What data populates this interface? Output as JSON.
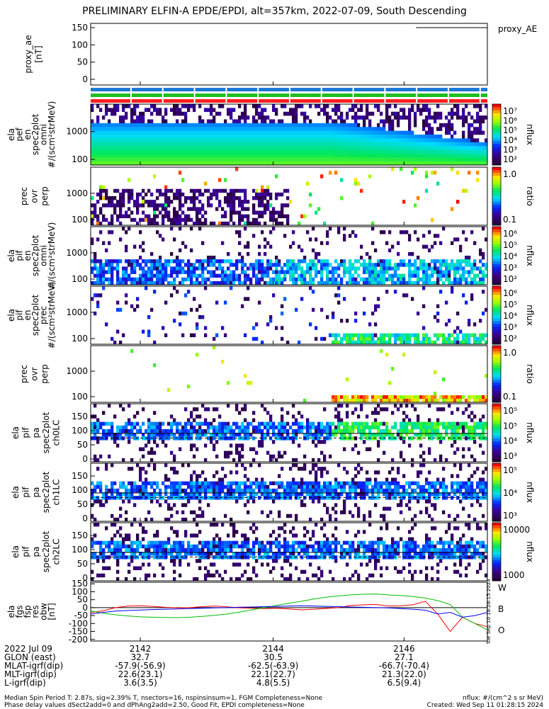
{
  "chart_data": {
    "type": "multi-panel-spectrogram",
    "title": "PRELIMINARY ELFIN-A EPDE/EPDI, alt=357km, 2022-07-09, South Descending",
    "panels": [
      {
        "id": "proxy_ae",
        "ylabel": [
          "proxy_ae",
          "[nT]"
        ],
        "yticks": [
          "150",
          "100",
          "50",
          "0"
        ],
        "ylim": [
          0,
          160
        ],
        "legend": "proxy_AE",
        "series": [
          {
            "x": [
              0.82,
              1.0
            ],
            "values": [
              150,
              150
            ]
          }
        ]
      },
      {
        "id": "flags",
        "ylabel": [],
        "bars": [
          "#1e78d6",
          "#1fbe1f",
          "#ff2020"
        ]
      },
      {
        "id": "ela_pef_omni",
        "ylabel": [
          "ela",
          "pef",
          "en",
          "spec2plot",
          "omni",
          "#/(scm²strMeV)"
        ],
        "yticks": [
          "1000",
          "100"
        ],
        "cbar_label": "nflux",
        "cbar_ticks": [
          "10⁷",
          "10⁶",
          "10⁵",
          "10⁴",
          "10³",
          "10²"
        ]
      },
      {
        "id": "prec_ovr_perp_e",
        "ylabel": [
          "prec",
          "ovr",
          "perp"
        ],
        "yticks": [
          "1000",
          "100"
        ],
        "cbar_label": "ratio",
        "cbar_ticks": [
          "1.0",
          "0.1"
        ]
      },
      {
        "id": "ela_pif_omni",
        "ylabel": [
          "ela",
          "pif",
          "en",
          "spec2plot",
          "omni",
          "#/(scm²strMeV)"
        ],
        "yticks": [
          "1000",
          "100"
        ],
        "cbar_label": "nflux",
        "cbar_ticks": [
          "10⁶",
          "10⁵",
          "10⁴",
          "10³",
          "10²"
        ]
      },
      {
        "id": "ela_pif_prec",
        "ylabel": [
          "ela",
          "pif",
          "en",
          "spec2plot",
          "prec",
          "#/(scm²strMeV)"
        ],
        "yticks": [
          "1000",
          "100"
        ],
        "cbar_label": "nflux",
        "cbar_ticks": [
          "10⁶",
          "10⁵",
          "10⁴",
          "10³",
          "10²"
        ]
      },
      {
        "id": "prec_ovr_perp_i",
        "ylabel": [
          "prec",
          "ovr",
          "perp"
        ],
        "yticks": [
          "1000",
          "100"
        ],
        "cbar_label": "ratio",
        "cbar_ticks": [
          "1.0",
          "0.1"
        ]
      },
      {
        "id": "ela_pif_pa_ch0",
        "ylabel": [
          "ela",
          "pif",
          "pa",
          "spec2plot",
          "ch0LC"
        ],
        "yticks": [
          "150",
          "100",
          "50",
          "0"
        ],
        "cbar_label": "nflux",
        "cbar_ticks": [
          "10⁵",
          "10⁵",
          "10⁴",
          "10³"
        ]
      },
      {
        "id": "ela_pif_pa_ch1",
        "ylabel": [
          "ela",
          "pif",
          "pa",
          "spec2plot",
          "ch1LC"
        ],
        "yticks": [
          "150",
          "100",
          "50",
          "0"
        ],
        "cbar_label": "nflux",
        "cbar_ticks": [
          "10⁵",
          "10⁴",
          "10³"
        ]
      },
      {
        "id": "ela_pif_pa_ch2",
        "ylabel": [
          "ela",
          "pif",
          "pa",
          "spec2plot",
          "ch2LC"
        ],
        "yticks": [
          "150",
          "100",
          "50",
          "0"
        ],
        "cbar_label": "nflux",
        "cbar_ticks": [
          "10000",
          "1000"
        ]
      },
      {
        "id": "ela_fgs_res",
        "ylabel": [
          "ela",
          "fgs",
          "fsp",
          "res",
          "obw",
          "[nT]"
        ],
        "yticks": [
          "150",
          "100",
          "50",
          "0",
          "-50",
          "-100",
          "-150",
          "-200"
        ],
        "ylim": [
          -210,
          160
        ],
        "legend": [
          "W",
          "B",
          "O"
        ],
        "legend_colors": [
          "#cc0000",
          "#00aa00",
          "#0000cc"
        ],
        "series": [
          {
            "name": "W",
            "color": "#ff0000",
            "values": [
              -30,
              -20,
              0,
              10,
              12,
              8,
              2,
              -2,
              0,
              6,
              10,
              5,
              -1,
              -4,
              -6,
              -4,
              -8,
              -14,
              -10,
              -5,
              0,
              14,
              18,
              20,
              10,
              12,
              18,
              40,
              -40,
              -150,
              -60,
              -100,
              -120
            ]
          },
          {
            "name": "B",
            "color": "#00c000",
            "values": [
              -20,
              -35,
              -45,
              -52,
              -58,
              -60,
              -62,
              -63,
              -60,
              -55,
              -48,
              -40,
              -28,
              -14,
              0,
              14,
              28,
              40,
              54,
              66,
              74,
              80,
              84,
              86,
              80,
              76,
              70,
              60,
              44,
              20,
              -60,
              -100,
              -140
            ]
          },
          {
            "name": "O",
            "color": "#0000ff",
            "values": [
              -40,
              -30,
              -22,
              -18,
              -15,
              -12,
              -10,
              -8,
              -6,
              -4,
              -2,
              0,
              3,
              4,
              6,
              8,
              10,
              12,
              10,
              8,
              6,
              4,
              2,
              0,
              -2,
              -6,
              -10,
              -16,
              -40,
              -30,
              -60,
              -50,
              -30
            ]
          }
        ]
      }
    ],
    "fgs_side_label": "Tue Sep 10 18:28:15 2024",
    "x_axis": {
      "ticks": [
        "2142",
        "2144",
        "2146"
      ],
      "rows": [
        {
          "label": "2022 Jul 09",
          "vals": [
            "2142",
            "2144",
            "2146"
          ]
        },
        {
          "label": "GLON (east)",
          "vals": [
            "32.7",
            "30.5",
            "27.1"
          ]
        },
        {
          "label": "MLAT-igrf(dip)",
          "vals": [
            "-57.9(-56.9)",
            "-62.5(-63.9)",
            "-66.7(-70.4)"
          ]
        },
        {
          "label": "MLT-igrf(dip)",
          "vals": [
            "22.6(23.1)",
            "22.1(22.7)",
            "21.3(22.0)"
          ]
        },
        {
          "label": "L-igrf(dip)",
          "vals": [
            "3.6(3.5)",
            "4.8(5.5)",
            "6.5(9.4)"
          ]
        }
      ]
    }
  },
  "footer": {
    "line1": "Median Spin Period T: 2.87s, sig=2.39% T, nsectors=16, nspinsinsum=1, FGM Completeness=None",
    "line2": "Phase delay values dSect2add=0 and dPhAng2add=2.50, Good Fit, EPDI completeness=None",
    "units": "nflux: #/(cm^2 s sr MeV)",
    "created": "Created: Wed Sep 11 01:28:15 2024"
  }
}
